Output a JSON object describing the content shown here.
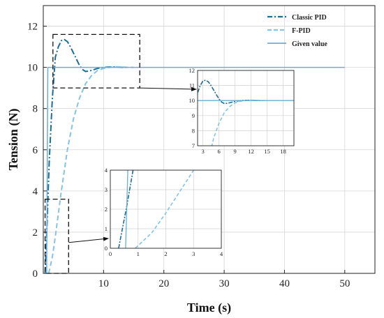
{
  "chart_data": [
    {
      "id": "main",
      "type": "line",
      "xlabel": "Time (s)",
      "ylabel": "Tension (N)",
      "xlim": [
        0,
        55
      ],
      "ylim": [
        0,
        13
      ],
      "xticks": [
        10,
        20,
        30,
        40,
        50
      ],
      "yticks": [
        0,
        2,
        4,
        6,
        8,
        10,
        12
      ],
      "grid": true,
      "legend_position": "top-right",
      "series": [
        {
          "name": "Classic PID",
          "style": "dash-dot",
          "color": "#1a6e96",
          "x": [
            0.3,
            0.6,
            1,
            1.5,
            2,
            2.5,
            3,
            3.5,
            4,
            4.5,
            5,
            5.5,
            6,
            6.5,
            7,
            7.5,
            8,
            8.5,
            9,
            10,
            11,
            12,
            13,
            14
          ],
          "y": [
            0,
            2.2,
            5.5,
            8.5,
            10.5,
            11.0,
            11.3,
            11.35,
            11.25,
            11.0,
            10.7,
            10.4,
            10.1,
            9.9,
            9.8,
            9.82,
            9.85,
            9.9,
            9.95,
            10.0,
            10.02,
            10.02,
            10.0,
            10.0
          ]
        },
        {
          "name": "F-PID",
          "style": "dashed",
          "color": "#85c4e4",
          "x": [
            0.9,
            1.5,
            2,
            2.5,
            3,
            3.5,
            4,
            5,
            6,
            7,
            8,
            9,
            10,
            11,
            12,
            13,
            14,
            15
          ],
          "y": [
            0,
            0.8,
            1.8,
            2.9,
            4.0,
            5.0,
            6.0,
            7.5,
            8.5,
            9.2,
            9.6,
            9.85,
            9.95,
            10.0,
            10.03,
            10.02,
            10.0,
            10.0
          ]
        },
        {
          "name": "Given value",
          "style": "solid",
          "color": "#6aaed6",
          "x": [
            0.55,
            0.75,
            50
          ],
          "y": [
            0,
            10,
            10
          ]
        }
      ]
    },
    {
      "id": "inset_top",
      "type": "line",
      "xlim": [
        2,
        20
      ],
      "ylim": [
        7,
        12
      ],
      "xticks": [
        3,
        6,
        9,
        12,
        15,
        18
      ],
      "yticks": [
        7,
        8,
        9,
        10,
        11,
        12
      ],
      "grid": true
    },
    {
      "id": "inset_bottom",
      "type": "line",
      "xlim": [
        0,
        4
      ],
      "ylim": [
        0,
        4
      ],
      "xticks": [
        0,
        1,
        2,
        3,
        4
      ],
      "yticks": [
        0,
        1,
        2,
        3,
        4
      ],
      "grid": true
    }
  ]
}
